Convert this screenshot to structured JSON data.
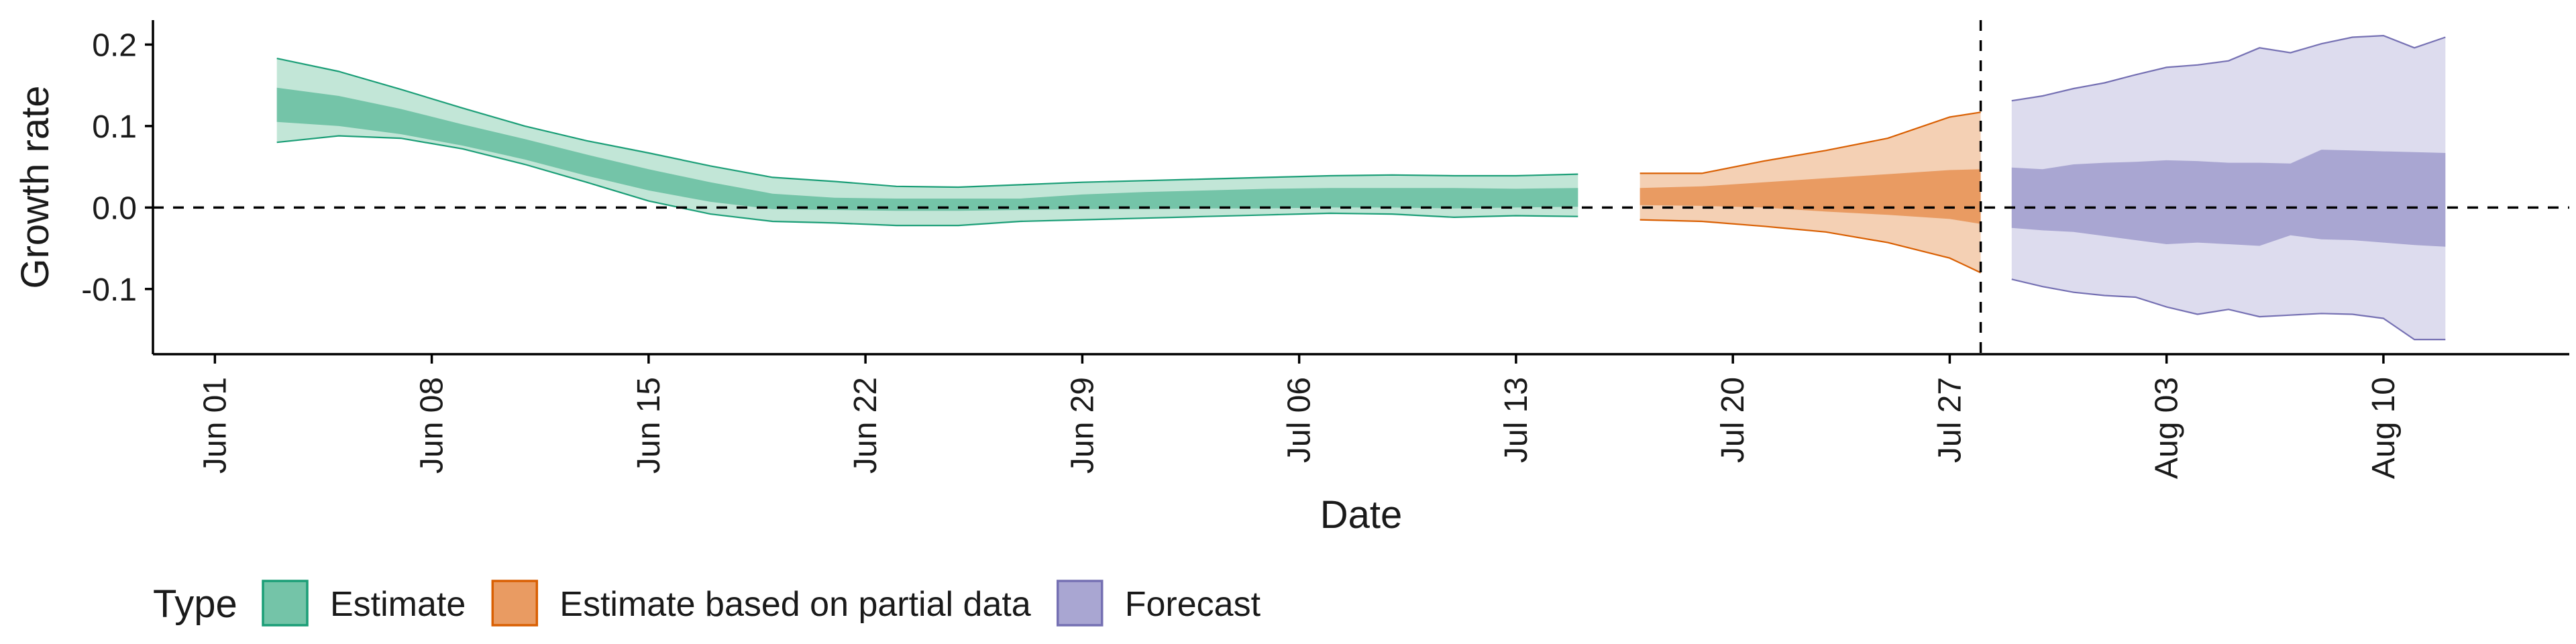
{
  "chart_data": {
    "type": "area",
    "title": "",
    "xlabel": "Date",
    "ylabel": "Growth rate",
    "x_range": [
      "2020-05-30",
      "2020-08-16"
    ],
    "ylim": [
      -0.18,
      0.23
    ],
    "y_ticks": [
      -0.1,
      0.0,
      0.1,
      0.2
    ],
    "y_tick_labels": [
      "-0.1",
      "0.0",
      "0.1",
      "0.2"
    ],
    "x_ticks": [
      "2020-06-01",
      "2020-06-08",
      "2020-06-15",
      "2020-06-22",
      "2020-06-29",
      "2020-07-06",
      "2020-07-13",
      "2020-07-20",
      "2020-07-27",
      "2020-08-03",
      "2020-08-10"
    ],
    "x_tick_labels": [
      "Jun 01",
      "Jun 08",
      "Jun 15",
      "Jun 22",
      "Jun 29",
      "Jul 06",
      "Jul 13",
      "Jul 20",
      "Jul 27",
      "Aug 03",
      "Aug 10"
    ],
    "reference_lines": {
      "horizontal_y": 0.0,
      "vertical_x": "2020-07-28"
    },
    "grid": false,
    "legend": {
      "title": "Type",
      "placement": "bottom-left",
      "items": [
        {
          "label": "Estimate",
          "fill": "#74c4a8",
          "stroke": "#1b9e77"
        },
        {
          "label": "Estimate based on partial data",
          "fill": "#e99b62",
          "stroke": "#d95f02"
        },
        {
          "label": "Forecast",
          "fill": "#a9a6d2",
          "stroke": "#7570b3"
        }
      ]
    },
    "series": [
      {
        "name": "Estimate",
        "colors": {
          "outer": "#c2e6d7",
          "inner": "#74c4a8",
          "line": "#1b9e77"
        },
        "x": [
          "2020-06-03",
          "2020-06-05",
          "2020-06-07",
          "2020-06-09",
          "2020-06-11",
          "2020-06-13",
          "2020-06-15",
          "2020-06-17",
          "2020-06-19",
          "2020-06-21",
          "2020-06-23",
          "2020-06-25",
          "2020-06-27",
          "2020-06-29",
          "2020-07-01",
          "2020-07-03",
          "2020-07-05",
          "2020-07-07",
          "2020-07-09",
          "2020-07-11",
          "2020-07-13",
          "2020-07-15"
        ],
        "outer_upper": [
          0.183,
          0.167,
          0.145,
          0.122,
          0.1,
          0.082,
          0.067,
          0.051,
          0.037,
          0.032,
          0.026,
          0.025,
          0.028,
          0.031,
          0.033,
          0.035,
          0.037,
          0.039,
          0.04,
          0.039,
          0.039,
          0.041
        ],
        "inner_upper": [
          0.147,
          0.137,
          0.121,
          0.102,
          0.084,
          0.065,
          0.047,
          0.031,
          0.017,
          0.012,
          0.011,
          0.011,
          0.011,
          0.016,
          0.019,
          0.021,
          0.023,
          0.024,
          0.024,
          0.024,
          0.023,
          0.024
        ],
        "inner_lower": [
          0.105,
          0.1,
          0.09,
          0.076,
          0.059,
          0.039,
          0.021,
          0.007,
          -0.002,
          -0.003,
          -0.004,
          -0.004,
          -0.003,
          -0.002,
          -0.002,
          -0.001,
          -0.001,
          0.0,
          0.0,
          -0.001,
          0.0,
          0.001
        ],
        "outer_lower": [
          0.08,
          0.088,
          0.085,
          0.072,
          0.053,
          0.031,
          0.008,
          -0.008,
          -0.017,
          -0.019,
          -0.022,
          -0.022,
          -0.017,
          -0.015,
          -0.013,
          -0.011,
          -0.009,
          -0.007,
          -0.008,
          -0.012,
          -0.01,
          -0.011
        ]
      },
      {
        "name": "Estimate based on partial data",
        "colors": {
          "outer": "#f4d0b4",
          "inner": "#e99b62",
          "line": "#d95f02"
        },
        "x": [
          "2020-07-17",
          "2020-07-19",
          "2020-07-21",
          "2020-07-23",
          "2020-07-25",
          "2020-07-27",
          "2020-07-28"
        ],
        "outer_upper": [
          0.042,
          0.042,
          0.057,
          0.07,
          0.085,
          0.111,
          0.117
        ],
        "inner_upper": [
          0.024,
          0.026,
          0.031,
          0.036,
          0.041,
          0.046,
          0.047
        ],
        "inner_lower": [
          0.003,
          0.002,
          0.0,
          -0.005,
          -0.009,
          -0.014,
          -0.02
        ],
        "outer_lower": [
          -0.015,
          -0.017,
          -0.023,
          -0.03,
          -0.043,
          -0.062,
          -0.08
        ]
      },
      {
        "name": "Forecast",
        "colors": {
          "outer": "#dddcee",
          "inner": "#a9a6d2",
          "line": "#7570b3"
        },
        "x": [
          "2020-07-29",
          "2020-07-30",
          "2020-07-31",
          "2020-08-01",
          "2020-08-02",
          "2020-08-03",
          "2020-08-04",
          "2020-08-05",
          "2020-08-06",
          "2020-08-07",
          "2020-08-08",
          "2020-08-09",
          "2020-08-10",
          "2020-08-11",
          "2020-08-12"
        ],
        "outer_upper": [
          0.131,
          0.137,
          0.146,
          0.153,
          0.163,
          0.172,
          0.175,
          0.18,
          0.196,
          0.19,
          0.201,
          0.209,
          0.211,
          0.196,
          0.209
        ],
        "inner_upper": [
          0.049,
          0.047,
          0.053,
          0.055,
          0.056,
          0.058,
          0.057,
          0.055,
          0.055,
          0.054,
          0.071,
          0.07,
          0.069,
          0.068,
          0.067
        ],
        "inner_lower": [
          -0.025,
          -0.028,
          -0.03,
          -0.035,
          -0.04,
          -0.045,
          -0.043,
          -0.045,
          -0.047,
          -0.034,
          -0.039,
          -0.04,
          -0.043,
          -0.046,
          -0.048
        ],
        "outer_lower": [
          -0.088,
          -0.097,
          -0.104,
          -0.108,
          -0.11,
          -0.122,
          -0.131,
          -0.125,
          -0.134,
          -0.132,
          -0.13,
          -0.131,
          -0.136,
          -0.162,
          -0.162
        ]
      }
    ]
  }
}
